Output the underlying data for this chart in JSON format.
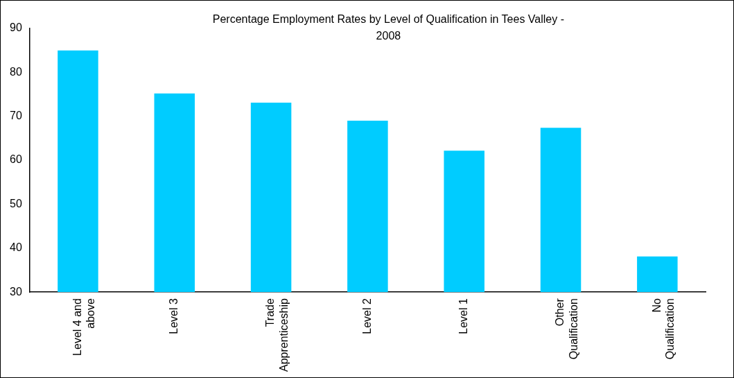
{
  "chart_data": {
    "type": "bar",
    "title": "Percentage Employment Rates by Level of Qualification in Tees Valley - 2008",
    "categories": [
      "Level 4 and above",
      "Level 3",
      "Trade Apprenticeship",
      "Level 2",
      "Level 1",
      "Other Qualification",
      "No Qualification"
    ],
    "values": [
      85.0,
      75.2,
      73.1,
      69.0,
      62.2,
      67.4,
      38.1
    ],
    "color": "#00ccff",
    "ylim": [
      30,
      90
    ],
    "yticks": [
      30,
      40,
      50,
      60,
      70,
      80,
      90
    ],
    "grid": false,
    "legend": false
  }
}
